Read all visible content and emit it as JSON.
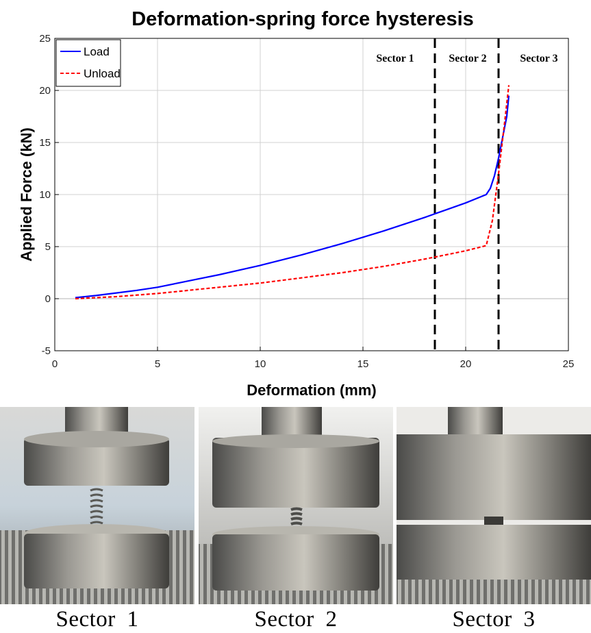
{
  "chart_data": {
    "type": "line",
    "title": "Deformation-spring force hysteresis",
    "xlabel": "Deformation (mm)",
    "ylabel": "Applied Force (kN)",
    "xlim": [
      0,
      25
    ],
    "ylim": [
      -5,
      25
    ],
    "x_ticks": [
      "0",
      "5",
      "10",
      "15",
      "20",
      "25"
    ],
    "y_ticks": [
      "-5",
      "0",
      "5",
      "10",
      "15",
      "20",
      "25"
    ],
    "grid": true,
    "legend_position": "top-left",
    "series": [
      {
        "name": "Load",
        "color": "#0000ff",
        "style": "solid",
        "x": [
          1.0,
          2.0,
          3.0,
          4.0,
          5.0,
          6.0,
          7.0,
          8.0,
          9.0,
          10.0,
          11.0,
          12.0,
          13.0,
          14.0,
          15.0,
          16.0,
          17.0,
          18.0,
          19.0,
          20.0,
          21.0,
          21.2,
          21.4,
          21.6,
          21.8,
          22.0,
          22.1
        ],
        "y": [
          0.1,
          0.3,
          0.55,
          0.8,
          1.1,
          1.5,
          1.9,
          2.3,
          2.75,
          3.2,
          3.7,
          4.2,
          4.75,
          5.3,
          5.9,
          6.5,
          7.15,
          7.8,
          8.5,
          9.2,
          10.0,
          10.6,
          11.8,
          13.5,
          15.5,
          17.5,
          19.5
        ]
      },
      {
        "name": "Unload",
        "color": "#ff0000",
        "style": "dashed",
        "x": [
          1.0,
          2.0,
          3.0,
          4.0,
          5.0,
          6.0,
          7.0,
          8.0,
          9.0,
          10.0,
          11.0,
          12.0,
          13.0,
          14.0,
          15.0,
          16.0,
          17.0,
          18.0,
          19.0,
          20.0,
          21.0,
          21.3,
          21.6,
          21.9,
          22.1
        ],
        "y": [
          0.0,
          0.1,
          0.2,
          0.35,
          0.5,
          0.7,
          0.9,
          1.1,
          1.3,
          1.5,
          1.75,
          2.0,
          2.25,
          2.5,
          2.8,
          3.1,
          3.45,
          3.8,
          4.2,
          4.6,
          5.1,
          7.5,
          12.0,
          17.0,
          20.5
        ]
      }
    ],
    "sector_boundaries": [
      18.5,
      21.6
    ],
    "sector_labels": [
      "Sector 1",
      "Sector 2",
      "Sector 3"
    ]
  },
  "captions": [
    "Sector  1",
    "Sector  2",
    "Sector  3"
  ],
  "photos": [
    {
      "name": "spring-sector-1-photo"
    },
    {
      "name": "spring-sector-2-photo"
    },
    {
      "name": "spring-sector-3-photo"
    }
  ]
}
